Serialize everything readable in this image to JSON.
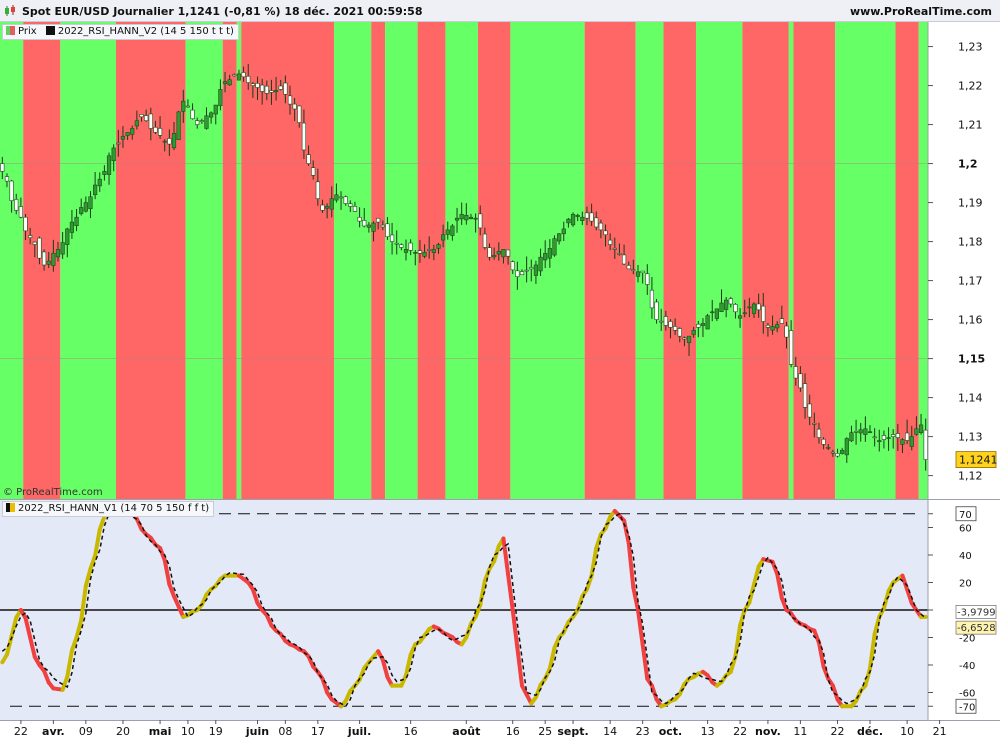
{
  "header": {
    "title": "Spot EUR/USD Journalier 1,1241 (-0,81 %) 18 déc. 2021 00:59:58",
    "brand": "www.ProRealTime.com"
  },
  "legend_price": {
    "label1": "Prix",
    "label2": "2022_RSI_HANN_V2 (14 5 150 t t t)"
  },
  "legend_osc": {
    "label": "2022_RSI_HANN_V1 (14 70 5 150 f f t)"
  },
  "credit": "© ProRealTime.com",
  "colors": {
    "green_zone": "#66ff66",
    "red_zone": "#ff6666",
    "candle_body": "#2f9a2f",
    "candle_wick": "#1a3a1a",
    "osc_up": "#c9b800",
    "osc_down": "#f04040",
    "osc_bg": "#e4e9f7",
    "last_price_bg": "#ffd21f"
  },
  "x_axis": {
    "ticks": [
      {
        "label": "22",
        "i": 4
      },
      {
        "label": "avr.",
        "i": 11,
        "bold": true
      },
      {
        "label": "09",
        "i": 18
      },
      {
        "label": "20",
        "i": 26
      },
      {
        "label": "mai",
        "i": 34,
        "bold": true
      },
      {
        "label": "10",
        "i": 40
      },
      {
        "label": "19",
        "i": 46
      },
      {
        "label": "juin",
        "i": 55,
        "bold": true
      },
      {
        "label": "08",
        "i": 61
      },
      {
        "label": "17",
        "i": 68
      },
      {
        "label": "juil.",
        "i": 77,
        "bold": true
      },
      {
        "label": "16",
        "i": 88
      },
      {
        "label": "août",
        "i": 100,
        "bold": true
      },
      {
        "label": "16",
        "i": 110
      },
      {
        "label": "25",
        "i": 117
      },
      {
        "label": "sept.",
        "i": 123,
        "bold": true
      },
      {
        "label": "14",
        "i": 131
      },
      {
        "label": "23",
        "i": 138
      },
      {
        "label": "oct.",
        "i": 144,
        "bold": true
      },
      {
        "label": "13",
        "i": 152
      },
      {
        "label": "22",
        "i": 159
      },
      {
        "label": "nov.",
        "i": 165,
        "bold": true
      },
      {
        "label": "11",
        "i": 172
      },
      {
        "label": "22",
        "i": 180
      },
      {
        "label": "déc.",
        "i": 187,
        "bold": true
      },
      {
        "label": "10",
        "i": 195
      },
      {
        "label": "21",
        "i": 202
      }
    ]
  },
  "chart_data": [
    {
      "type": "candlestick",
      "title": "Spot EUR/USD Journalier",
      "ylim": [
        1.114,
        1.2363
      ],
      "y_ticks": [
        "1,23",
        "1,22",
        "1,21",
        "1,2",
        "1,19",
        "1,18",
        "1,17",
        "1,16",
        "1,15",
        "1,14",
        "1,13",
        "1,12"
      ],
      "y_tick_values": [
        1.23,
        1.22,
        1.21,
        1.2,
        1.19,
        1.18,
        1.17,
        1.16,
        1.15,
        1.14,
        1.13,
        1.12
      ],
      "bold_ticks": [
        "1,2",
        "1,15"
      ],
      "last_price": "1,1241",
      "last_price_value": 1.1241,
      "bar_count": 200,
      "zones": [
        {
          "color": "green",
          "start": 0,
          "end": 5
        },
        {
          "color": "red",
          "start": 5,
          "end": 13
        },
        {
          "color": "green",
          "start": 13,
          "end": 25
        },
        {
          "color": "red",
          "start": 25,
          "end": 40
        },
        {
          "color": "green",
          "start": 40,
          "end": 48
        },
        {
          "color": "red",
          "start": 48,
          "end": 51
        },
        {
          "color": "green",
          "start": 51,
          "end": 52
        },
        {
          "color": "red",
          "start": 52,
          "end": 72
        },
        {
          "color": "green",
          "start": 72,
          "end": 80
        },
        {
          "color": "red",
          "start": 80,
          "end": 83
        },
        {
          "color": "green",
          "start": 83,
          "end": 90
        },
        {
          "color": "red",
          "start": 90,
          "end": 96
        },
        {
          "color": "green",
          "start": 96,
          "end": 103
        },
        {
          "color": "red",
          "start": 103,
          "end": 110
        },
        {
          "color": "green",
          "start": 110,
          "end": 126
        },
        {
          "color": "red",
          "start": 126,
          "end": 137
        },
        {
          "color": "green",
          "start": 137,
          "end": 143
        },
        {
          "color": "red",
          "start": 143,
          "end": 150
        },
        {
          "color": "green",
          "start": 150,
          "end": 160
        },
        {
          "color": "red",
          "start": 160,
          "end": 170
        },
        {
          "color": "green",
          "start": 170,
          "end": 171
        },
        {
          "color": "red",
          "start": 171,
          "end": 180
        },
        {
          "color": "green",
          "start": 180,
          "end": 193
        },
        {
          "color": "red",
          "start": 193,
          "end": 198
        },
        {
          "color": "green",
          "start": 198,
          "end": 200
        }
      ],
      "close_anchors": [
        [
          0,
          1.198
        ],
        [
          3,
          1.188
        ],
        [
          6,
          1.181
        ],
        [
          9,
          1.174
        ],
        [
          12,
          1.178
        ],
        [
          15,
          1.185
        ],
        [
          18,
          1.19
        ],
        [
          21,
          1.196
        ],
        [
          24,
          1.204
        ],
        [
          27,
          1.208
        ],
        [
          30,
          1.212
        ],
        [
          33,
          1.208
        ],
        [
          36,
          1.205
        ],
        [
          39,
          1.216
        ],
        [
          42,
          1.21
        ],
        [
          45,
          1.213
        ],
        [
          48,
          1.221
        ],
        [
          51,
          1.223
        ],
        [
          54,
          1.22
        ],
        [
          57,
          1.218
        ],
        [
          60,
          1.219
        ],
        [
          63,
          1.214
        ],
        [
          66,
          1.2
        ],
        [
          69,
          1.188
        ],
        [
          72,
          1.192
        ],
        [
          75,
          1.189
        ],
        [
          78,
          1.184
        ],
        [
          81,
          1.185
        ],
        [
          84,
          1.18
        ],
        [
          87,
          1.178
        ],
        [
          90,
          1.177
        ],
        [
          93,
          1.178
        ],
        [
          96,
          1.183
        ],
        [
          99,
          1.187
        ],
        [
          102,
          1.186
        ],
        [
          105,
          1.176
        ],
        [
          108,
          1.178
        ],
        [
          111,
          1.171
        ],
        [
          114,
          1.173
        ],
        [
          117,
          1.177
        ],
        [
          120,
          1.182
        ],
        [
          123,
          1.187
        ],
        [
          126,
          1.186
        ],
        [
          129,
          1.183
        ],
        [
          132,
          1.178
        ],
        [
          135,
          1.173
        ],
        [
          138,
          1.172
        ],
        [
          141,
          1.16
        ],
        [
          144,
          1.158
        ],
        [
          147,
          1.155
        ],
        [
          150,
          1.158
        ],
        [
          153,
          1.162
        ],
        [
          156,
          1.165
        ],
        [
          159,
          1.161
        ],
        [
          162,
          1.164
        ],
        [
          165,
          1.158
        ],
        [
          168,
          1.159
        ],
        [
          171,
          1.145
        ],
        [
          174,
          1.135
        ],
        [
          177,
          1.128
        ],
        [
          180,
          1.125
        ],
        [
          183,
          1.131
        ],
        [
          186,
          1.132
        ],
        [
          189,
          1.129
        ],
        [
          192,
          1.13
        ],
        [
          195,
          1.129
        ],
        [
          198,
          1.133
        ],
        [
          199,
          1.1241
        ]
      ]
    },
    {
      "type": "line",
      "title": "2022_RSI_HANN_V1",
      "ylim": [
        -80,
        80
      ],
      "y_ticks": [
        "70",
        "60",
        "40",
        "20",
        "0",
        "-20",
        "-40",
        "-60",
        "-70"
      ],
      "y_tick_values": [
        70,
        60,
        40,
        20,
        0,
        -20,
        -40,
        -60,
        -70
      ],
      "bands": [
        70,
        -70
      ],
      "last_values": [
        "-3,9799",
        "-6,6528"
      ],
      "last_value_levels": [
        -3.9799,
        -6.6528
      ],
      "series": [
        {
          "style": "solid-two-color",
          "up_color": "#c9b800",
          "down_color": "#f04040",
          "anchors": [
            [
              0,
              -38
            ],
            [
              4,
              0
            ],
            [
              8,
              -40
            ],
            [
              11,
              -57
            ],
            [
              13,
              -58
            ],
            [
              16,
              -20
            ],
            [
              19,
              30
            ],
            [
              22,
              68
            ],
            [
              25,
              75
            ],
            [
              28,
              70
            ],
            [
              31,
              55
            ],
            [
              34,
              45
            ],
            [
              37,
              10
            ],
            [
              39,
              -5
            ],
            [
              42,
              0
            ],
            [
              45,
              15
            ],
            [
              48,
              25
            ],
            [
              51,
              25
            ],
            [
              53,
              20
            ],
            [
              56,
              0
            ],
            [
              59,
              -15
            ],
            [
              62,
              -25
            ],
            [
              65,
              -30
            ],
            [
              68,
              -45
            ],
            [
              71,
              -65
            ],
            [
              73,
              -70
            ],
            [
              76,
              -55
            ],
            [
              79,
              -38
            ],
            [
              81,
              -30
            ],
            [
              84,
              -55
            ],
            [
              86,
              -55
            ],
            [
              89,
              -25
            ],
            [
              93,
              -12
            ],
            [
              96,
              -18
            ],
            [
              99,
              -25
            ],
            [
              102,
              -5
            ],
            [
              105,
              30
            ],
            [
              108,
              52
            ],
            [
              110,
              0
            ],
            [
              112,
              -55
            ],
            [
              114,
              -68
            ],
            [
              117,
              -50
            ],
            [
              120,
              -20
            ],
            [
              123,
              -5
            ],
            [
              126,
              15
            ],
            [
              129,
              55
            ],
            [
              132,
              72
            ],
            [
              134,
              65
            ],
            [
              137,
              0
            ],
            [
              139,
              -50
            ],
            [
              142,
              -70
            ],
            [
              145,
              -65
            ],
            [
              148,
              -50
            ],
            [
              151,
              -45
            ],
            [
              154,
              -55
            ],
            [
              157,
              -45
            ],
            [
              160,
              0
            ],
            [
              164,
              37
            ],
            [
              166,
              35
            ],
            [
              169,
              0
            ],
            [
              172,
              -10
            ],
            [
              175,
              -15
            ],
            [
              178,
              -50
            ],
            [
              181,
              -70
            ],
            [
              183,
              -70
            ],
            [
              186,
              -55
            ],
            [
              189,
              -5
            ],
            [
              192,
              20
            ],
            [
              194,
              25
            ],
            [
              196,
              5
            ],
            [
              198,
              -5
            ],
            [
              199,
              -5
            ]
          ]
        },
        {
          "style": "dashed",
          "color": "#111111",
          "anchors": [
            [
              0,
              -30
            ],
            [
              5,
              -2
            ],
            [
              9,
              -42
            ],
            [
              12,
              -52
            ],
            [
              14,
              -56
            ],
            [
              17,
              -15
            ],
            [
              20,
              35
            ],
            [
              23,
              70
            ],
            [
              26,
              74
            ],
            [
              29,
              66
            ],
            [
              32,
              50
            ],
            [
              35,
              40
            ],
            [
              38,
              8
            ],
            [
              40,
              -5
            ],
            [
              43,
              4
            ],
            [
              46,
              18
            ],
            [
              49,
              27
            ],
            [
              52,
              26
            ],
            [
              54,
              18
            ],
            [
              57,
              -2
            ],
            [
              60,
              -18
            ],
            [
              63,
              -25
            ],
            [
              66,
              -33
            ],
            [
              69,
              -50
            ],
            [
              72,
              -66
            ],
            [
              74,
              -70
            ],
            [
              77,
              -50
            ],
            [
              80,
              -35
            ],
            [
              82,
              -34
            ],
            [
              85,
              -52
            ],
            [
              87,
              -50
            ],
            [
              90,
              -20
            ],
            [
              94,
              -14
            ],
            [
              97,
              -22
            ],
            [
              100,
              -18
            ],
            [
              103,
              5
            ],
            [
              106,
              40
            ],
            [
              109,
              48
            ],
            [
              111,
              -10
            ],
            [
              113,
              -60
            ],
            [
              115,
              -62
            ],
            [
              118,
              -45
            ],
            [
              121,
              -15
            ],
            [
              124,
              0
            ],
            [
              127,
              25
            ],
            [
              130,
              62
            ],
            [
              133,
              70
            ],
            [
              135,
              55
            ],
            [
              138,
              -10
            ],
            [
              140,
              -60
            ],
            [
              143,
              -68
            ],
            [
              146,
              -60
            ],
            [
              149,
              -46
            ],
            [
              152,
              -50
            ],
            [
              155,
              -52
            ],
            [
              158,
              -35
            ],
            [
              161,
              10
            ],
            [
              165,
              38
            ],
            [
              167,
              30
            ],
            [
              170,
              -5
            ],
            [
              173,
              -12
            ],
            [
              176,
              -22
            ],
            [
              179,
              -60
            ],
            [
              182,
              -68
            ],
            [
              184,
              -65
            ],
            [
              187,
              -45
            ],
            [
              190,
              5
            ],
            [
              193,
              24
            ],
            [
              195,
              18
            ],
            [
              197,
              0
            ],
            [
              199,
              -6
            ]
          ]
        }
      ]
    }
  ]
}
